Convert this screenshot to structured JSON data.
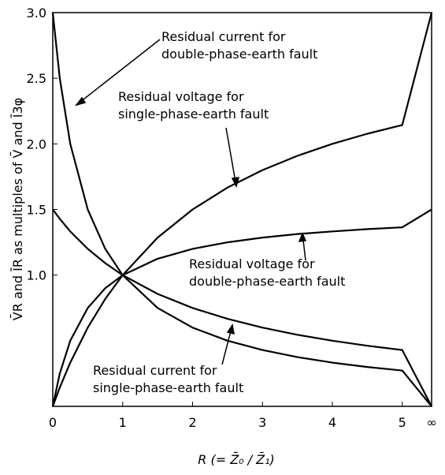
{
  "chart_data": {
    "type": "line",
    "x": [
      0,
      0.1,
      0.25,
      0.5,
      0.75,
      1,
      1.5,
      2,
      2.5,
      3,
      3.5,
      4,
      4.5,
      5,
      5.42
    ],
    "series": [
      {
        "name": [
          "Residual current for",
          "double-phase-earth fault"
        ],
        "color": "#000000",
        "values": [
          3,
          2.5,
          2.0,
          1.5,
          1.2,
          1,
          0.75,
          0.6,
          0.5,
          0.429,
          0.375,
          0.333,
          0.3,
          0.273,
          0
        ]
      },
      {
        "name": [
          "Residual voltage for",
          "single-phase-earth fault"
        ],
        "color": "#000000",
        "values": [
          0,
          0.143,
          0.333,
          0.6,
          0.818,
          1,
          1.286,
          1.5,
          1.667,
          1.8,
          1.909,
          2.0,
          2.077,
          2.143,
          3.0
        ]
      },
      {
        "name": [
          "Residual voltage for",
          "double-phase-earth fault"
        ],
        "color": "#000000",
        "values": [
          0,
          0.25,
          0.5,
          0.75,
          0.9,
          1,
          1.125,
          1.2,
          1.25,
          1.286,
          1.313,
          1.333,
          1.35,
          1.364,
          1.5
        ]
      },
      {
        "name": [
          "Residual current for",
          "single-phase-earth fault"
        ],
        "color": "#000000",
        "values": [
          1.5,
          1.429,
          1.333,
          1.2,
          1.091,
          1,
          0.857,
          0.75,
          0.667,
          0.6,
          0.545,
          0.5,
          0.462,
          0.429,
          0
        ]
      }
    ],
    "xlabel": "R (= Z̄₀ / Z̄₁)",
    "ylabel": "V̄R and ĪR as multiples of V̄ and Ī3φ",
    "xlim": [
      0,
      5.42
    ],
    "xticks": [
      0,
      1,
      2,
      3,
      4,
      5,
      {
        "value": 5.42,
        "label": "∞"
      }
    ],
    "ylim": [
      0,
      3
    ],
    "yticks": [
      {
        "value": 1,
        "label": "1.0"
      },
      1.5,
      {
        "value": 2,
        "label": "2.0"
      },
      2.5,
      {
        "value": 3,
        "label": "3.0"
      }
    ],
    "grid": false
  }
}
